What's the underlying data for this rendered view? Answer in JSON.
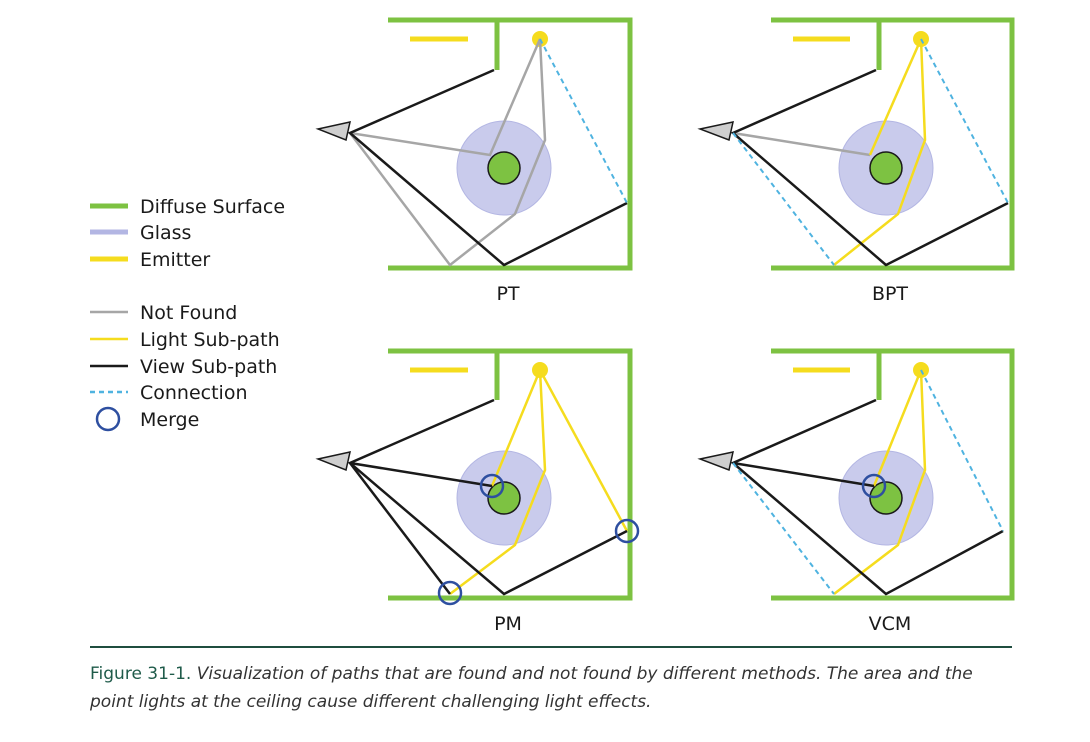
{
  "colors": {
    "diffuse": "#7dc242",
    "glass": "#b3b6e3",
    "emitter": "#f5dc1e",
    "not_found": "#a6a6a6",
    "light_subpath": "#f5dc1e",
    "view_subpath": "#1a1a1a",
    "connection": "#4fb3e0",
    "merge": "#2e4fa0",
    "caption_number": "#1f5b4a"
  },
  "legend": {
    "materials": [
      {
        "label": "Diffuse Surface",
        "swatch": "diffuse"
      },
      {
        "label": "Glass",
        "swatch": "glass"
      },
      {
        "label": "Emitter",
        "swatch": "emitter"
      }
    ],
    "paths": [
      {
        "label": "Not Found",
        "swatch": "not_found"
      },
      {
        "label": "Light Sub-path",
        "swatch": "light_subpath"
      },
      {
        "label": "View Sub-path",
        "swatch": "view_subpath"
      },
      {
        "label": "Connection",
        "swatch": "connection-dashed"
      },
      {
        "label": "Merge",
        "swatch": "merge-circle"
      }
    ]
  },
  "panels": [
    {
      "label": "PT"
    },
    {
      "label": "BPT"
    },
    {
      "label": "PM"
    },
    {
      "label": "VCM"
    }
  ],
  "caption": {
    "number": "Figure 31-1.",
    "text": "Visualization of paths that are found and not found by different methods. The area and the point lights at the ceiling cause different challenging light effects."
  }
}
